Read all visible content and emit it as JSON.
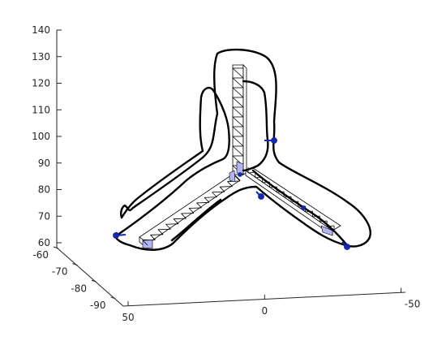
{
  "chart_data": {
    "type": "3d-line",
    "title": "",
    "xlabel": "",
    "ylabel": "",
    "zlabel": "",
    "x_axis": {
      "ticks": [
        50,
        0,
        -50
      ],
      "labels": [
        "50",
        "0",
        "-50"
      ],
      "range": [
        50,
        -50
      ]
    },
    "y_axis": {
      "ticks": [
        -90,
        -80,
        -70,
        -60
      ],
      "labels": [
        "-90",
        "-80",
        "-70",
        "-60"
      ],
      "range": [
        -90,
        -60
      ]
    },
    "z_axis": {
      "ticks": [
        60,
        70,
        80,
        90,
        100,
        110,
        120,
        130,
        140
      ],
      "labels": [
        "60",
        "70",
        "80",
        "90",
        "100",
        "110",
        "120",
        "130",
        "140"
      ],
      "range": [
        60,
        140
      ]
    },
    "grid": false,
    "series": [
      {
        "kind": "tubular-tripod-mesh"
      },
      {
        "kind": "closed-trajectory",
        "color": "#000000"
      },
      {
        "kind": "sample-markers",
        "color": "#1428b4",
        "count": 6
      }
    ]
  }
}
